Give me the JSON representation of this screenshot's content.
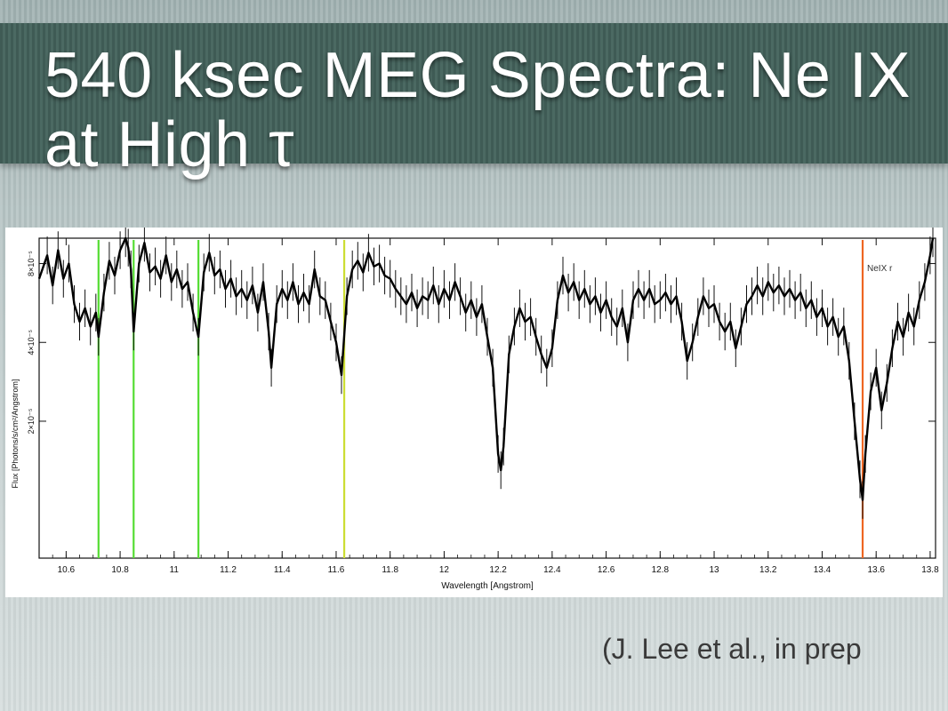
{
  "slide": {
    "title": "540 ksec MEG Spectra: Ne IX at High τ",
    "citation": "(J. Lee et al., in prep"
  },
  "chart_data": {
    "type": "line",
    "xlabel": "Wavelength [Angstrom]",
    "ylabel": "Flux [Photons/s/cm²/Angstrom]",
    "xlim": [
      10.5,
      13.82
    ],
    "ylim": [
      6e-06,
      0.0001
    ],
    "y_scale": "log",
    "x_ticks": [
      {
        "value": 10.6,
        "label": "10.6"
      },
      {
        "value": 10.8,
        "label": "10.8"
      },
      {
        "value": 11.0,
        "label": "11"
      },
      {
        "value": 11.2,
        "label": "11.2"
      },
      {
        "value": 11.4,
        "label": "11.4"
      },
      {
        "value": 11.6,
        "label": "11.6"
      },
      {
        "value": 11.8,
        "label": "11.8"
      },
      {
        "value": 12.0,
        "label": "12"
      },
      {
        "value": 12.2,
        "label": "12.2"
      },
      {
        "value": 12.4,
        "label": "12.4"
      },
      {
        "value": 12.6,
        "label": "12.6"
      },
      {
        "value": 12.8,
        "label": "12.8"
      },
      {
        "value": 13.0,
        "label": "13"
      },
      {
        "value": 13.2,
        "label": "13.2"
      },
      {
        "value": 13.4,
        "label": "13.4"
      },
      {
        "value": 13.6,
        "label": "13.6"
      },
      {
        "value": 13.8,
        "label": "13.8"
      }
    ],
    "y_ticks": [
      {
        "value": 2e-05,
        "label": "2×10⁻⁵"
      },
      {
        "value": 4e-05,
        "label": "4×10⁻⁵"
      },
      {
        "value": 8e-05,
        "label": "8×10⁻⁵"
      }
    ],
    "markers": [
      {
        "x": 10.72,
        "color": "#55dd33",
        "label": ""
      },
      {
        "x": 10.85,
        "color": "#55dd33",
        "label": ""
      },
      {
        "x": 11.09,
        "color": "#55dd33",
        "label": ""
      },
      {
        "x": 11.63,
        "color": "#ccdd33",
        "label": ""
      },
      {
        "x": 13.55,
        "color": "#ee6622",
        "label": "NeIX r"
      }
    ],
    "series": [
      {
        "points": [
          [
            10.5,
            7e-05
          ],
          [
            10.53,
            8.6e-05
          ],
          [
            10.55,
            6.6e-05
          ],
          [
            10.57,
            9e-05
          ],
          [
            10.59,
            7e-05
          ],
          [
            10.61,
            8e-05
          ],
          [
            10.63,
            5.6e-05
          ],
          [
            10.65,
            4.8e-05
          ],
          [
            10.67,
            5.4e-05
          ],
          [
            10.69,
            4.6e-05
          ],
          [
            10.71,
            5.2e-05
          ],
          [
            10.72,
            4.2e-05
          ],
          [
            10.74,
            6.2e-05
          ],
          [
            10.76,
            8.2e-05
          ],
          [
            10.78,
            7.2e-05
          ],
          [
            10.8,
            9e-05
          ],
          [
            10.82,
            0.0001
          ],
          [
            10.83,
            9.2e-05
          ],
          [
            10.84,
            7.6e-05
          ],
          [
            10.85,
            4.4e-05
          ],
          [
            10.87,
            8e-05
          ],
          [
            10.89,
            9.6e-05
          ],
          [
            10.91,
            7.4e-05
          ],
          [
            10.93,
            7.8e-05
          ],
          [
            10.95,
            7e-05
          ],
          [
            10.97,
            8.6e-05
          ],
          [
            10.99,
            6.8e-05
          ],
          [
            11.01,
            7.6e-05
          ],
          [
            11.03,
            6.4e-05
          ],
          [
            11.05,
            6.8e-05
          ],
          [
            11.07,
            5.2e-05
          ],
          [
            11.09,
            4.2e-05
          ],
          [
            11.11,
            7.4e-05
          ],
          [
            11.13,
            8.8e-05
          ],
          [
            11.15,
            7.2e-05
          ],
          [
            11.17,
            7.6e-05
          ],
          [
            11.19,
            6.4e-05
          ],
          [
            11.21,
            7e-05
          ],
          [
            11.23,
            6e-05
          ],
          [
            11.25,
            6.4e-05
          ],
          [
            11.27,
            5.8e-05
          ],
          [
            11.29,
            6.6e-05
          ],
          [
            11.31,
            5.2e-05
          ],
          [
            11.33,
            6.8e-05
          ],
          [
            11.35,
            4.4e-05
          ],
          [
            11.36,
            3.2e-05
          ],
          [
            11.38,
            5.6e-05
          ],
          [
            11.4,
            6.4e-05
          ],
          [
            11.42,
            5.8e-05
          ],
          [
            11.44,
            6.8e-05
          ],
          [
            11.46,
            5.6e-05
          ],
          [
            11.48,
            6.2e-05
          ],
          [
            11.5,
            5.6e-05
          ],
          [
            11.52,
            7.6e-05
          ],
          [
            11.54,
            6e-05
          ],
          [
            11.56,
            5.8e-05
          ],
          [
            11.58,
            4.8e-05
          ],
          [
            11.6,
            4e-05
          ],
          [
            11.62,
            3e-05
          ],
          [
            11.64,
            6e-05
          ],
          [
            11.66,
            7.6e-05
          ],
          [
            11.68,
            8.2e-05
          ],
          [
            11.7,
            7.4e-05
          ],
          [
            11.72,
            8.8e-05
          ],
          [
            11.74,
            7.8e-05
          ],
          [
            11.76,
            8e-05
          ],
          [
            11.78,
            7.2e-05
          ],
          [
            11.8,
            7e-05
          ],
          [
            11.82,
            6.4e-05
          ],
          [
            11.84,
            6e-05
          ],
          [
            11.86,
            5.6e-05
          ],
          [
            11.88,
            6.2e-05
          ],
          [
            11.9,
            5.4e-05
          ],
          [
            11.92,
            6e-05
          ],
          [
            11.94,
            5.8e-05
          ],
          [
            11.96,
            6.6e-05
          ],
          [
            11.98,
            5.6e-05
          ],
          [
            12.0,
            6.4e-05
          ],
          [
            12.02,
            5.8e-05
          ],
          [
            12.04,
            6.8e-05
          ],
          [
            12.06,
            6e-05
          ],
          [
            12.08,
            5.2e-05
          ],
          [
            12.1,
            5.8e-05
          ],
          [
            12.12,
            5e-05
          ],
          [
            12.14,
            5.6e-05
          ],
          [
            12.16,
            4.2e-05
          ],
          [
            12.18,
            3.2e-05
          ],
          [
            12.2,
            1.5e-05
          ],
          [
            12.21,
            1.3e-05
          ],
          [
            12.22,
            1.6e-05
          ],
          [
            12.24,
            3.6e-05
          ],
          [
            12.26,
            4.6e-05
          ],
          [
            12.28,
            5.4e-05
          ],
          [
            12.3,
            4.8e-05
          ],
          [
            12.32,
            5e-05
          ],
          [
            12.34,
            4.2e-05
          ],
          [
            12.36,
            3.6e-05
          ],
          [
            12.38,
            3.2e-05
          ],
          [
            12.4,
            3.8e-05
          ],
          [
            12.42,
            5.8e-05
          ],
          [
            12.44,
            7.2e-05
          ],
          [
            12.46,
            6.2e-05
          ],
          [
            12.48,
            6.8e-05
          ],
          [
            12.5,
            5.8e-05
          ],
          [
            12.52,
            6.4e-05
          ],
          [
            12.54,
            5.6e-05
          ],
          [
            12.56,
            6e-05
          ],
          [
            12.58,
            5.2e-05
          ],
          [
            12.6,
            5.8e-05
          ],
          [
            12.62,
            5e-05
          ],
          [
            12.64,
            4.6e-05
          ],
          [
            12.66,
            5.4e-05
          ],
          [
            12.68,
            4e-05
          ],
          [
            12.7,
            5.8e-05
          ],
          [
            12.72,
            6.4e-05
          ],
          [
            12.74,
            5.8e-05
          ],
          [
            12.76,
            6.4e-05
          ],
          [
            12.78,
            5.6e-05
          ],
          [
            12.8,
            5.8e-05
          ],
          [
            12.82,
            6.2e-05
          ],
          [
            12.84,
            5.6e-05
          ],
          [
            12.86,
            6e-05
          ],
          [
            12.88,
            4.8e-05
          ],
          [
            12.9,
            3.4e-05
          ],
          [
            12.92,
            4e-05
          ],
          [
            12.94,
            5e-05
          ],
          [
            12.96,
            6e-05
          ],
          [
            12.98,
            5.4e-05
          ],
          [
            13.0,
            5.6e-05
          ],
          [
            13.02,
            4.8e-05
          ],
          [
            13.04,
            4.4e-05
          ],
          [
            13.06,
            4.8e-05
          ],
          [
            13.08,
            3.8e-05
          ],
          [
            13.1,
            4.6e-05
          ],
          [
            13.12,
            5.6e-05
          ],
          [
            13.14,
            6e-05
          ],
          [
            13.16,
            6.6e-05
          ],
          [
            13.18,
            6e-05
          ],
          [
            13.2,
            6.8e-05
          ],
          [
            13.22,
            6.2e-05
          ],
          [
            13.24,
            6.6e-05
          ],
          [
            13.26,
            6e-05
          ],
          [
            13.28,
            6.4e-05
          ],
          [
            13.3,
            5.8e-05
          ],
          [
            13.32,
            6.2e-05
          ],
          [
            13.34,
            5.4e-05
          ],
          [
            13.36,
            5.8e-05
          ],
          [
            13.38,
            5e-05
          ],
          [
            13.4,
            5.4e-05
          ],
          [
            13.42,
            4.6e-05
          ],
          [
            13.44,
            5e-05
          ],
          [
            13.46,
            4.2e-05
          ],
          [
            13.48,
            4.6e-05
          ],
          [
            13.5,
            3.4e-05
          ],
          [
            13.52,
            2e-05
          ],
          [
            13.54,
            1.2e-05
          ],
          [
            13.55,
            1e-05
          ],
          [
            13.56,
            1.5e-05
          ],
          [
            13.58,
            2.6e-05
          ],
          [
            13.6,
            3.2e-05
          ],
          [
            13.62,
            2.2e-05
          ],
          [
            13.64,
            2.8e-05
          ],
          [
            13.66,
            3.8e-05
          ],
          [
            13.68,
            4.8e-05
          ],
          [
            13.7,
            4.2e-05
          ],
          [
            13.72,
            5.2e-05
          ],
          [
            13.74,
            4.6e-05
          ],
          [
            13.76,
            5.8e-05
          ],
          [
            13.78,
            6.8e-05
          ],
          [
            13.8,
            8.6e-05
          ],
          [
            13.81,
            0.0001
          ]
        ]
      }
    ]
  }
}
